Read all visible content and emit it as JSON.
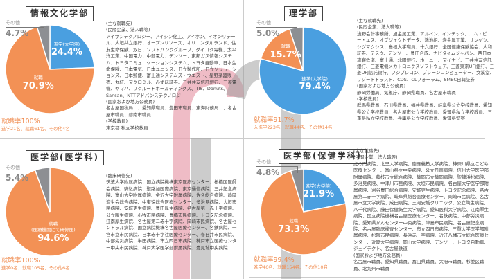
{
  "colors": {
    "advance": "#4a9fe0",
    "employ": "#f39155",
    "other": "#8d8f93",
    "rate": "#f08c50"
  },
  "panels": [
    {
      "title": "情報文化学部",
      "other_label": "その他",
      "slices": [
        {
          "label": "進学(大学院)",
          "value": 24.4,
          "pct": "24.4%",
          "kind": "advance"
        },
        {
          "label": "就職",
          "value": 70.9,
          "pct": "70.9%",
          "kind": "employ"
        },
        {
          "label": "",
          "value": 4.7,
          "pct": "4.7%",
          "kind": "other"
        }
      ],
      "rate": "就職率100%",
      "sub": "進学21名、就職61名、その他4名",
      "sections": [
        {
          "h": "(主な就職先)",
          "t": ""
        },
        {
          "h": "(民間企業、法人職等)",
          "t": "アイサンテクノロジー、アイシン化工、アイホン、イオンリテール、大垣共立銀行、オープンリソース、オリエンタルランド、住友生命保険、双日、ソフトバンクグループ、ダイコク電機、太平洋工業、中国電力、中部電力、デンソー、東邦ガス情報システム、トヨタコミュニケーションシステム、トヨタ自動車、日本生命保険、日本電気、日本ユニシス、日立製作所、日立ソリューションズ、日本郵便、富士通システムズ・ウエスト、星野楽器販売、丸紅、マクロミル、みずほ証券、三井住友信託銀行、三菱電機、ヤマハ、リクルートホールディングス、TIS、Donuts、Sansan、NTTアドバンステクノロジ"
        },
        {
          "h": "(国家および地方公務員)",
          "t": "名古屋国税局　、愛知県職員、豊田市職員、東海財務局　、名古屋市職員、碧南市職員"
        },
        {
          "h": "(学校教員)",
          "t": "東京都 私立学校教員"
        }
      ]
    },
    {
      "title": "理学部",
      "other_label": "その他",
      "slices": [
        {
          "label": "進学(大学院)",
          "value": 79.4,
          "pct": "79.4%",
          "kind": "advance"
        },
        {
          "label": "就職",
          "value": 15.7,
          "pct": "15.7%",
          "kind": "employ"
        },
        {
          "label": "",
          "value": 5.0,
          "pct": "5.0%",
          "kind": "other"
        }
      ],
      "rate": "就職率91.7%",
      "sub": "入進学223名、就職44名、その他14名",
      "sections": [
        {
          "h": "(主な就職先)",
          "t": ""
        },
        {
          "h": "(民間企業、法人職等)",
          "t": "浅野会計事務所、旭金属工業、アルペン、インテック、エム・ビー・エス、オブジェクトデータ、鴻池組、寿金属工業、サンゲツ、シグマクシス、島根大学職員、十六銀行、全国健康保険協会、大和証券、テスク、デンソー、豊田合成、ナビタイムジャパン、西日本旅客鉄道、富士通、北國銀行、ホーユー、マイナビ、三井住友信託銀行、三菱電機メカトロニクスソフトウェア、三菱東京UFJ銀行、三菱UFJ信託銀行、フジプレコン、ブレーンコンピューター、文溪堂、リゾートトラスト、CDS、CLフォーラム、SMBC日興証券"
        },
        {
          "h": "(国家および地方公務員)",
          "t": "静岡労働局、気象庁、静岡県職員、名古屋市職員"
        },
        {
          "h": "(学校教員)",
          "t": "群馬県教員、石川県教員、福井県教員、岐阜県公立学校教員、愛知県公立学校教員、名古屋市公立学校教員、愛知県私立学校教員、三重県私立学校教員、兵庫県公立学校教員、愛知県警察"
        }
      ]
    },
    {
      "title": "医学部(医学科)",
      "other_label": "その他",
      "slices": [
        {
          "label": "就職\n(医療機関にて研修医)",
          "value": 94.6,
          "pct": "94.6%",
          "kind": "employ"
        },
        {
          "label": "",
          "value": 5.4,
          "pct": "5.4%",
          "kind": "other"
        }
      ],
      "rate": "就職率100%",
      "sub": "進学0名、就職105名、その他6名",
      "sections": [
        {
          "h": "(臨床研修先)",
          "t": "筑波大学附属病院、国立病院機構東京医療センター、板橋区医師会病院、駒込病院、聖路加国際病院、東京通信病院、三井記念病院、富山大学附属病院、金沢大学附属病院、佐久総合病院、静岡済生会総合病院、中東遠総合医療センター、多治見病院、大垣市民病院、安城更生病院、豊田厚生病院、名古屋第一赤十字病院、公立陶生病院、小牧市民病院、豊橋市民病院、トヨタ記念病院、江南厚生病院、名古屋第二赤十字病院、岡崎市民病院、名古屋セントラル病院、国立病院機構名古屋医療センター、名鉄病院、一宮市立市民病院、日本赤十字社医療センター、春日井市民病院、中部労災病院、半田病院、市立四日市病院、神戸市立医療センター中央市民病院、神戸大学医学部附属病院、豊見城中央病院"
        }
      ]
    },
    {
      "title": "医学部(保健学科)",
      "other_label": "その他",
      "slices": [
        {
          "label": "進学(大学院)",
          "value": 21.9,
          "pct": "21.9%",
          "kind": "advance"
        },
        {
          "label": "就職",
          "value": 73.3,
          "pct": "73.3%",
          "kind": "employ"
        },
        {
          "label": "",
          "value": 4.8,
          "pct": "4.8%",
          "kind": "other"
        }
      ],
      "rate": "就職率99.4%",
      "sub": "進学46名、就職154名、その他10名",
      "sections": [
        {
          "h": "(主な就職先)",
          "t": ""
        },
        {
          "h": "(民間企業、法人職等)",
          "t": "虎の門病院、北里大学病院、慶應義塾大学病院、神奈川県立こども医療センター、富山県立中央病院、公立丹南病院、信州大学医学部附属病院、藤枝市立総合病院、静岡市立静岡病院、聖隷浜松病院、多治見病院、中津川市民病院、大垣市民病院、名古屋大学医学部附属病院、刈谷豊田総合病院、安城更生病院、トヨタ記念病院、名古屋第二赤十字病院、岐阜県総合医療センター、岡崎市民病院、名古屋市立大学病院、成田病院、三河安城クリニック、公立陶生病院、八千代病院、藤田保健衛生大学病院、愛知医科大学病院、江南厚生病院、国立病院機構名古屋医療センター、名鉄病院、中部労災病院、愛知県がんセンター中央病院、津島市民病院、名古屋記念病院、名古屋臨床検査センター、市立四日市病院、三重大学医学部附属病院、松阪市民病院、長浜赤十字病院、近江八幡市立総合医療センター、近畿大学病院、岡山大学病院、デンソー、トヨタ自動車、ジェイテクト、名古屋鉄道"
        },
        {
          "h": "(国家および地方公務員)",
          "t": "名古屋市職員、愛知県職員、富山県職員、大府市職員、杉並区職員、北九州市職員"
        }
      ]
    }
  ]
}
